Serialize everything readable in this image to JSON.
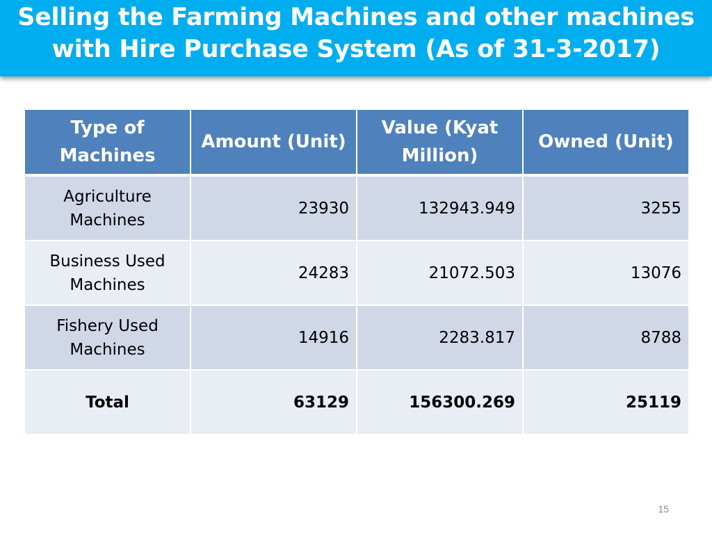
{
  "title": {
    "line1": "Selling the Farming Machines and other machines",
    "line2": "with Hire Purchase System (As of 31-3-2017)"
  },
  "table": {
    "headers": {
      "type": [
        "Type of",
        "Machines"
      ],
      "amount": "Amount (Unit)",
      "value": [
        "Value (Kyat",
        "Million)"
      ],
      "owned": "Owned (Unit)"
    },
    "rows": [
      {
        "type": [
          "Agriculture",
          "Machines"
        ],
        "amount": "23930",
        "value": "132943.949",
        "owned": "3255"
      },
      {
        "type": [
          "Business Used",
          "Machines"
        ],
        "amount": "24283",
        "value": "21072.503",
        "owned": "13076"
      },
      {
        "type": [
          "Fishery Used",
          "Machines"
        ],
        "amount": "14916",
        "value": "2283.817",
        "owned": "8788"
      }
    ],
    "total": {
      "label": "Total",
      "amount": "63129",
      "value": "156300.269",
      "owned": "25119"
    }
  },
  "page_number": "15",
  "colors": {
    "banner": "#00aeef",
    "header": "#4f81bd",
    "row_dark": "#d0d8e8",
    "row_light": "#e9edf4"
  }
}
